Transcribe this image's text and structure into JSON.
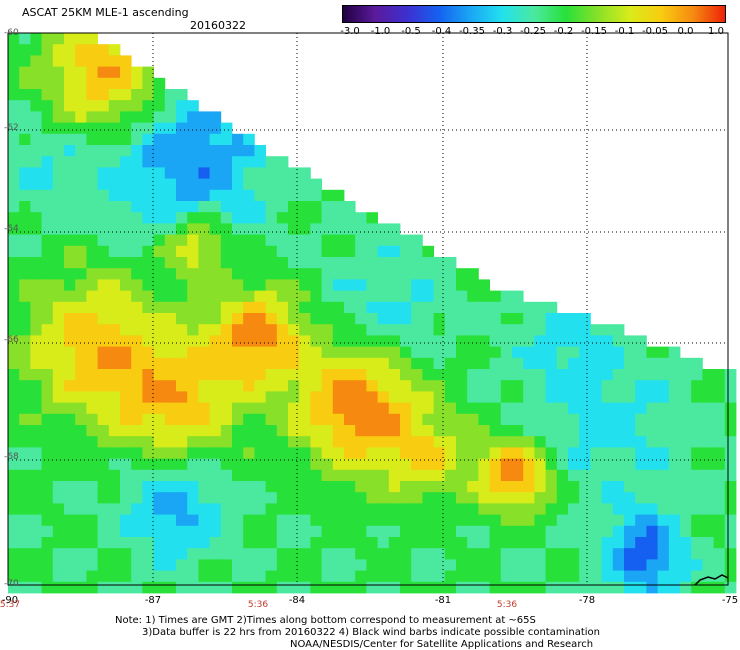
{
  "header": {
    "title": "ASCAT 25KM MLE-1 ascending",
    "date": "20160322"
  },
  "colorbar": {
    "labels": [
      "-3.0",
      "-1.0",
      "-0.5",
      "-0.4",
      "-0.35",
      "-0.3",
      "-0.25",
      "-0.2",
      "-0.15",
      "-0.1",
      "-0.05",
      "0.0",
      "1.0"
    ],
    "colors": [
      "#200040",
      "#5a1a9a",
      "#3e2fd0",
      "#1560f0",
      "#1aa6f5",
      "#22e0ee",
      "#4be9a0",
      "#28e03a",
      "#88e028",
      "#d8ec1a",
      "#f8cc10",
      "#f68a10",
      "#ee2208"
    ]
  },
  "axes": {
    "lat_labels": [
      "-60",
      "-62",
      "-64",
      "-66",
      "-68",
      "-70"
    ],
    "lon_labels": [
      "-90",
      "-87",
      "-84",
      "-81",
      "-78",
      "-75"
    ]
  },
  "times": [
    "5:37",
    "5:36",
    "5:36"
  ],
  "notes": [
    "Note: 1) Times are GMT 2)Times along bottom correspond to measurement at ~65S",
    "3)Data buffer is 22 hrs from 20160322 4) Black wind barbs indicate possible contamination",
    "NOAA/NESDIS/Center for Satellite Applications and Research"
  ]
}
